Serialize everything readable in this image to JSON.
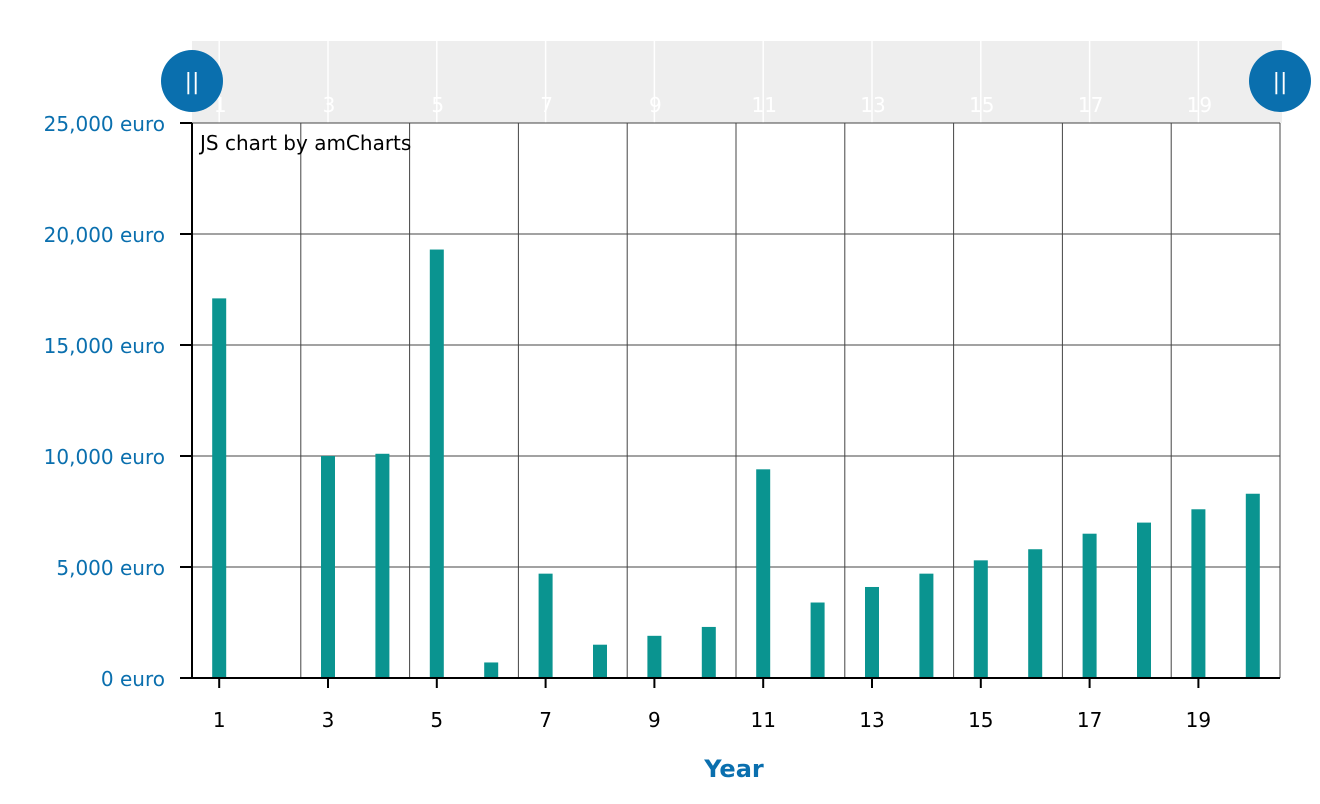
{
  "credit": "JS chart by amCharts",
  "colors": {
    "bar": "#0a9490",
    "axis_label": "#0a6fae",
    "handle": "#0a6fae",
    "scrollbar_bg": "#eeeeee",
    "grid": "#444444",
    "tick_text": "#000000"
  },
  "scrollbar": {
    "left_handle_icon": "grip-lines-icon",
    "right_handle_icon": "grip-lines-icon",
    "handle_glyph": "||",
    "range": [
      1,
      20
    ]
  },
  "chart_data": {
    "type": "bar",
    "title": "",
    "xlabel": "Year",
    "ylabel": "",
    "categories": [
      1,
      2,
      3,
      4,
      5,
      6,
      7,
      8,
      9,
      10,
      11,
      12,
      13,
      14,
      15,
      16,
      17,
      18,
      19,
      20
    ],
    "x_tick_labels": [
      "1",
      "3",
      "5",
      "7",
      "9",
      "11",
      "13",
      "15",
      "17",
      "19"
    ],
    "x_tick_values": [
      1,
      3,
      5,
      7,
      9,
      11,
      13,
      15,
      17,
      19
    ],
    "series": [
      {
        "values": [
          17100,
          0,
          10000,
          10100,
          19300,
          700,
          4700,
          1500,
          1900,
          2300,
          9400,
          3400,
          4100,
          4700,
          5300,
          5800,
          6500,
          7000,
          7600,
          8300
        ]
      }
    ],
    "ylim": [
      0,
      25000
    ],
    "y_ticks": [
      0,
      5000,
      10000,
      15000,
      20000,
      25000
    ],
    "y_tick_labels": [
      "0 euro",
      "5,000 euro",
      "10,000 euro",
      "15,000 euro",
      "20,000 euro",
      "25,000 euro"
    ],
    "grid": true,
    "legend": "none"
  }
}
